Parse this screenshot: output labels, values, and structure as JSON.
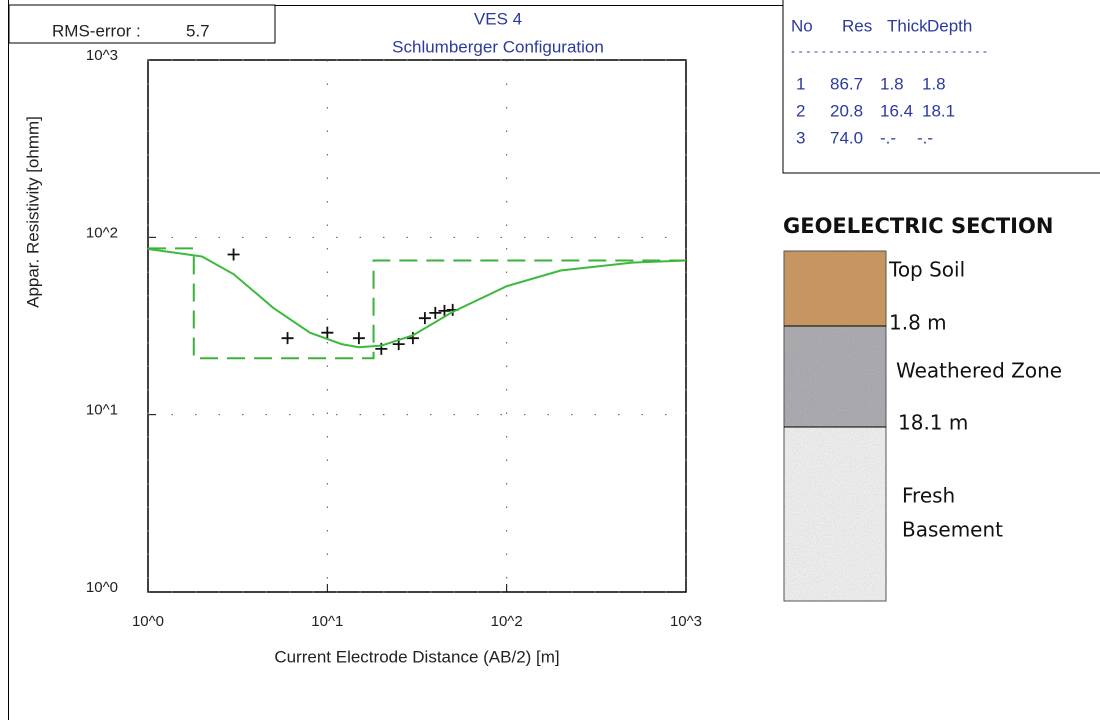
{
  "chart_data": {
    "type": "line",
    "rms_label": "RMS-error :",
    "rms_value": "5.7",
    "title": "VES 4",
    "subtitle": "Schlumberger Configuration",
    "x_label": "Current Electrode Distance (AB/2) [m]",
    "y_label": "Appar. Resistivity [ohmm]",
    "log_x": true,
    "log_y": true,
    "grid": true,
    "xlim": [
      1,
      1000
    ],
    "ylim": [
      1,
      1000
    ],
    "xticks": [
      {
        "value": 1,
        "label": "10^0"
      },
      {
        "value": 10,
        "label": "10^1"
      },
      {
        "value": 100,
        "label": "10^2"
      },
      {
        "value": 1000,
        "label": "10^3"
      }
    ],
    "yticks": [
      {
        "value": 1,
        "label": "10^0"
      },
      {
        "value": 10,
        "label": "10^1"
      },
      {
        "value": 100,
        "label": "10^2"
      },
      {
        "value": 1000,
        "label": "10^3"
      }
    ],
    "series": [
      {
        "style": "markers",
        "color": "#111111",
        "x": [
          3,
          6,
          10,
          15,
          20,
          25,
          30,
          35,
          40,
          45,
          50
        ],
        "values": [
          80,
          27,
          29,
          27,
          23.5,
          25,
          27,
          35,
          37.5,
          38.5,
          39
        ]
      },
      {
        "style": "solid",
        "color": "#3cba3c",
        "x": [
          1,
          2,
          3,
          5,
          8,
          12,
          15,
          20,
          30,
          50,
          100,
          200,
          500,
          1000
        ],
        "values": [
          86,
          78,
          62,
          40,
          29,
          25,
          24,
          24.5,
          28,
          38,
          53,
          65,
          72,
          74
        ]
      },
      {
        "style": "dashed",
        "color": "#3cb03c",
        "x": [
          1,
          1.8,
          1.8,
          18.1,
          18.1,
          1000
        ],
        "values": [
          86.7,
          86.7,
          20.8,
          20.8,
          74,
          74
        ]
      }
    ]
  },
  "table": {
    "header": [
      "No",
      "Res",
      "Thick",
      "Depth"
    ],
    "separator": "--------------------------",
    "rows": [
      [
        "1",
        "86.7",
        "1.8",
        "1.8"
      ],
      [
        "2",
        "20.8",
        "16.4",
        "18.1"
      ],
      [
        "3",
        "74.0",
        "-.-",
        "-.-"
      ]
    ]
  },
  "section": {
    "title": "GEOELECTRIC SECTION",
    "layers": [
      {
        "label": "Top Soil",
        "depth": "1.8 m"
      },
      {
        "label": "Weathered Zone",
        "depth": "18.1 m"
      },
      {
        "label": [
          "Fresh",
          "Basement"
        ]
      }
    ]
  }
}
